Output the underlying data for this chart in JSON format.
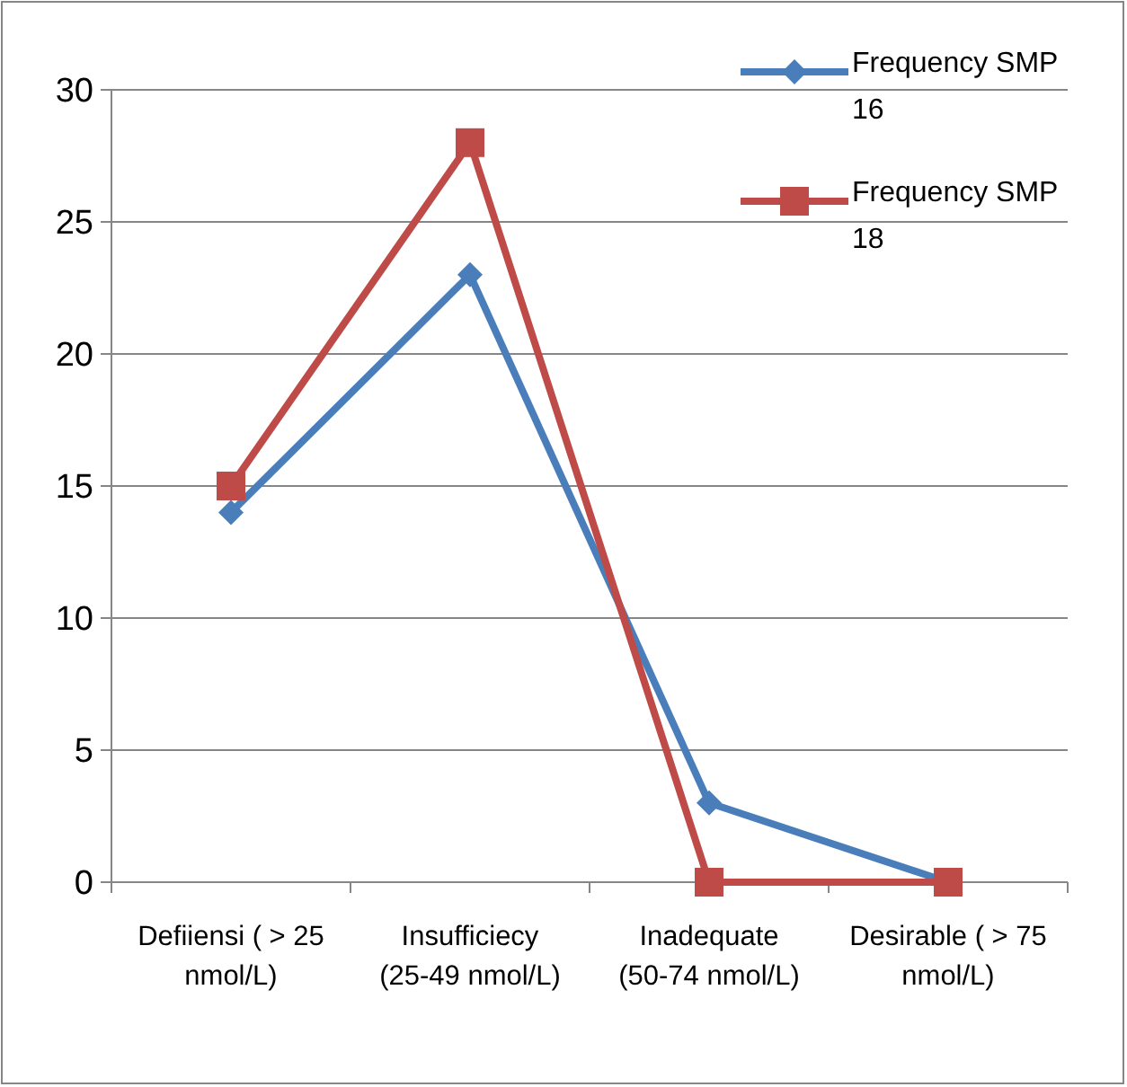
{
  "chart_data": {
    "type": "line",
    "categories": [
      "Defiiensi ( > 25 nmol/L)",
      "Insufficiecy (25-49 nmol/L)",
      "Inadequate (50-74 nmol/L)",
      "Desirable ( > 75 nmol/L)"
    ],
    "series": [
      {
        "name": "Frequency SMP 16",
        "color": "#4a7ebb",
        "marker": "diamond",
        "values": [
          14,
          23,
          3,
          0
        ]
      },
      {
        "name": "Frequency SMP 18",
        "color": "#be4b48",
        "marker": "square",
        "values": [
          15,
          28,
          0,
          0
        ]
      }
    ],
    "ylim": [
      0,
      30
    ],
    "yticks": [
      0,
      5,
      10,
      15,
      20,
      25,
      30
    ],
    "grid": "y",
    "legend": "top right",
    "line_style": "solid"
  }
}
